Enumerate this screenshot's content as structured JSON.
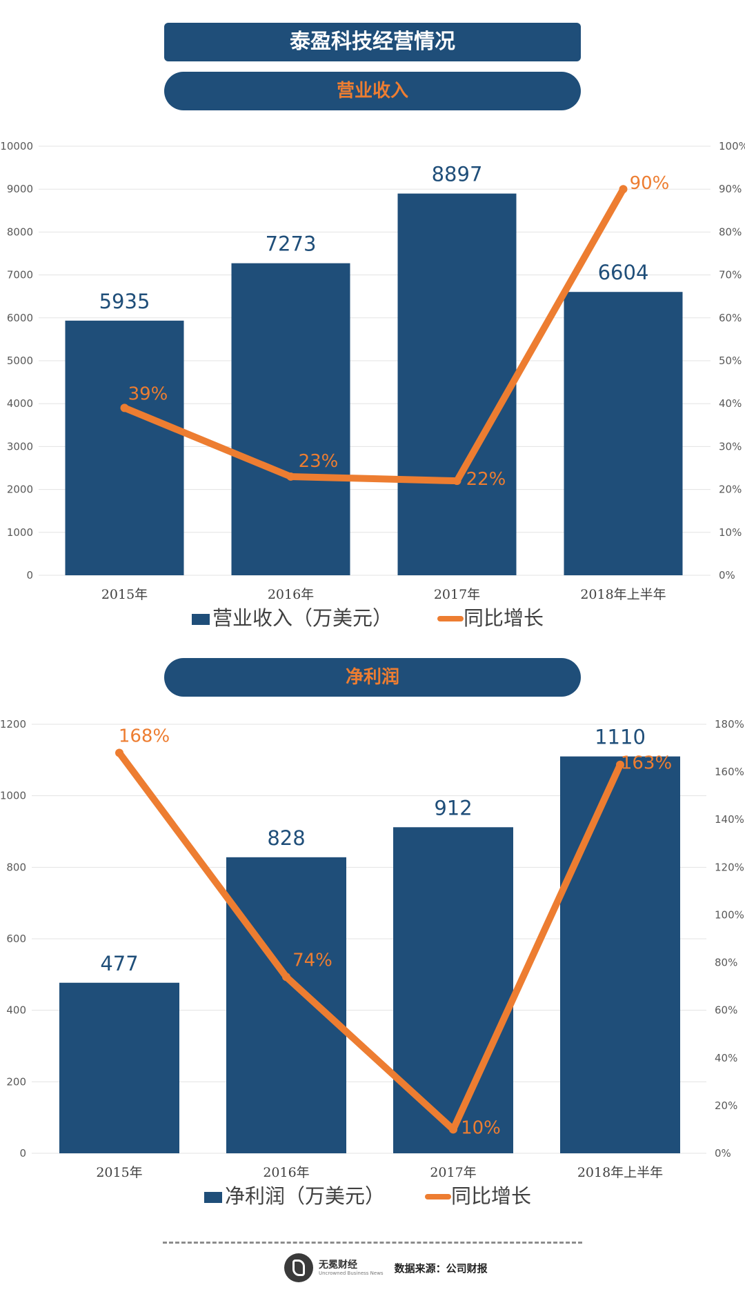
{
  "title": "泰盈科技经营情况",
  "colors": {
    "bar": "#1f4e79",
    "line": "#ed7d31",
    "title_bg": "#1f4e79",
    "grid": "#e3e3e3"
  },
  "footer": {
    "brand": "无冕财经",
    "brand_en": "Uncrowned Business News",
    "source": "数据来源：公司财报"
  },
  "chart_data": [
    {
      "type": "bar",
      "title": "营业收入",
      "categories": [
        "2015年",
        "2016年",
        "2017年",
        "2018年上半年"
      ],
      "series": [
        {
          "name": "营业收入（万美元）",
          "type": "bar",
          "axis": "left",
          "values": [
            5935,
            7273,
            8897,
            6604
          ]
        },
        {
          "name": "同比增长",
          "type": "line",
          "axis": "right",
          "values": [
            39,
            23,
            22,
            90
          ]
        }
      ],
      "value_labels": [
        "5935",
        "7273",
        "8897",
        "6604"
      ],
      "pct_labels": [
        "39%",
        "23%",
        "22%",
        "90%"
      ],
      "ylim": [
        0,
        10000
      ],
      "yticks": [
        "0",
        "1000",
        "2000",
        "3000",
        "4000",
        "5000",
        "6000",
        "7000",
        "8000",
        "9000",
        "10000"
      ],
      "y2lim": [
        0,
        100
      ],
      "y2ticks": [
        "0%",
        "10%",
        "20%",
        "30%",
        "40%",
        "50%",
        "60%",
        "70%",
        "80%",
        "90%",
        "100%"
      ],
      "grid": true,
      "legend": "bottom"
    },
    {
      "type": "bar",
      "title": "净利润",
      "categories": [
        "2015年",
        "2016年",
        "2017年",
        "2018年上半年"
      ],
      "series": [
        {
          "name": "净利润（万美元）",
          "type": "bar",
          "axis": "left",
          "values": [
            477,
            828,
            912,
            1110
          ]
        },
        {
          "name": "同比增长",
          "type": "line",
          "axis": "right",
          "values": [
            168,
            74,
            10,
            163
          ]
        }
      ],
      "value_labels": [
        "477",
        "828",
        "912",
        "1110"
      ],
      "pct_labels": [
        "168%",
        "74%",
        "10%",
        "163%"
      ],
      "ylim": [
        0,
        1200
      ],
      "yticks": [
        "0",
        "200",
        "400",
        "600",
        "800",
        "1000",
        "1200"
      ],
      "y2lim": [
        0,
        180
      ],
      "y2ticks": [
        "0%",
        "20%",
        "40%",
        "60%",
        "80%",
        "100%",
        "120%",
        "140%",
        "160%",
        "180%"
      ],
      "grid": true,
      "legend": "bottom"
    }
  ]
}
